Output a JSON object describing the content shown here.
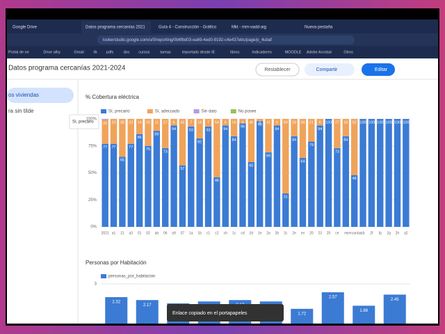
{
  "browser": {
    "tabs": [
      "Google Drive",
      "Datos programa cercanías 2021",
      "Guía 4 - Construcción - Gráfico",
      "Mkt - mm-vadd-aig",
      "Nueva pestaña"
    ],
    "url": "lookerstudio.google.com/u/0/reporting/0b6fbd03-ea69-4ed0-9192-c4e437ebc/page/p_4ubaf",
    "bookmarks": [
      "Portal de ne",
      "Drive alhy",
      "Gmail",
      "IA",
      "pdfs",
      "doc",
      "cursos",
      "tareas",
      "importado desde IE",
      "libros",
      "Indicadores",
      "MOODLE",
      "Adobe Acrobat",
      "Otros"
    ]
  },
  "report": {
    "title": "Datos programa cercanías 2021-2024",
    "reset": "Restablecer",
    "share": "Compartir",
    "edit": "Editar",
    "sidebar": [
      "os viviendas",
      "ra sin tilde"
    ],
    "tooltip": "Sí, precario",
    "toast": "Enlace copiado en el portapapeles"
  },
  "chart_data": [
    {
      "type": "stacked-bar",
      "title": "% Cobertura eléctrica",
      "categories": [
        "2021",
        "a1",
        "21",
        "a3",
        "01",
        "02",
        "ab",
        "06",
        "a9",
        "07",
        "1a",
        "1b",
        "c1",
        "c2",
        "ch",
        "1c",
        "cd",
        "2d",
        "1e",
        "2a",
        "2b",
        "2c",
        "2e",
        "ev",
        "20",
        "23",
        "25",
        "ce",
        "re",
        "cercanías",
        "cb",
        "2f",
        "bj",
        "2g",
        "2h",
        "a2"
      ],
      "series": [
        {
          "name": "Sí, precario",
          "color": "#3b7bd4",
          "values": [
            77,
            77,
            65,
            77,
            86,
            75,
            89,
            73,
            94,
            57,
            93,
            82,
            93,
            46,
            94,
            84,
            96,
            60,
            98,
            69,
            94,
            31,
            84,
            64,
            79,
            94,
            100,
            73,
            84,
            48,
            100,
            100,
            100,
            100,
            100,
            100
          ]
        },
        {
          "name": "Sí, adecuado",
          "color": "#f0a35a",
          "values": [
            22,
            23,
            35,
            23,
            14,
            25,
            11,
            27,
            6,
            43,
            7,
            18,
            7,
            54,
            6,
            16,
            4,
            40,
            2,
            31,
            6,
            69,
            16,
            36,
            21,
            6,
            0,
            27,
            16,
            52,
            0,
            0,
            0,
            0,
            0,
            0
          ]
        },
        {
          "name": "Sin dato",
          "color": "#b69be0",
          "values": [
            1,
            0,
            0,
            0,
            0,
            0,
            0,
            0,
            0,
            0,
            0,
            0,
            0,
            0,
            0,
            0,
            0,
            0,
            0,
            0,
            0,
            0,
            0,
            0,
            0,
            0,
            0,
            0,
            0,
            0,
            0,
            0,
            0,
            0,
            0,
            0
          ]
        },
        {
          "name": "No posee",
          "color": "#9bbf5a",
          "values": [
            0,
            0,
            0,
            0,
            0,
            0,
            0,
            0,
            0,
            0,
            0,
            0,
            0,
            0,
            0,
            0,
            0,
            0,
            0,
            0,
            0,
            0,
            0,
            0,
            0,
            0,
            0,
            0,
            0,
            0,
            0,
            0,
            0,
            0,
            0,
            0
          ]
        }
      ],
      "ylim": [
        0,
        100
      ],
      "yticks": [
        {
          "value": 0,
          "label": "0%"
        },
        {
          "value": 25,
          "label": "25%"
        },
        {
          "value": 50,
          "label": "50%"
        },
        {
          "value": 75,
          "label": "75%"
        },
        {
          "value": 100,
          "label": "100%"
        }
      ],
      "grid": true
    },
    {
      "type": "bar",
      "title": "Personas por Habitación",
      "series": [
        {
          "name": "personas_por_habitacion",
          "color": "#3b7bd4",
          "values": [
            2.32,
            2.17,
            2.0,
            2.1,
            2.17,
            2.1,
            1.72,
            2.57,
            1.88,
            2.45
          ]
        }
      ],
      "ylim": [
        0,
        3
      ],
      "yticks": [
        3
      ],
      "grid": true
    }
  ]
}
